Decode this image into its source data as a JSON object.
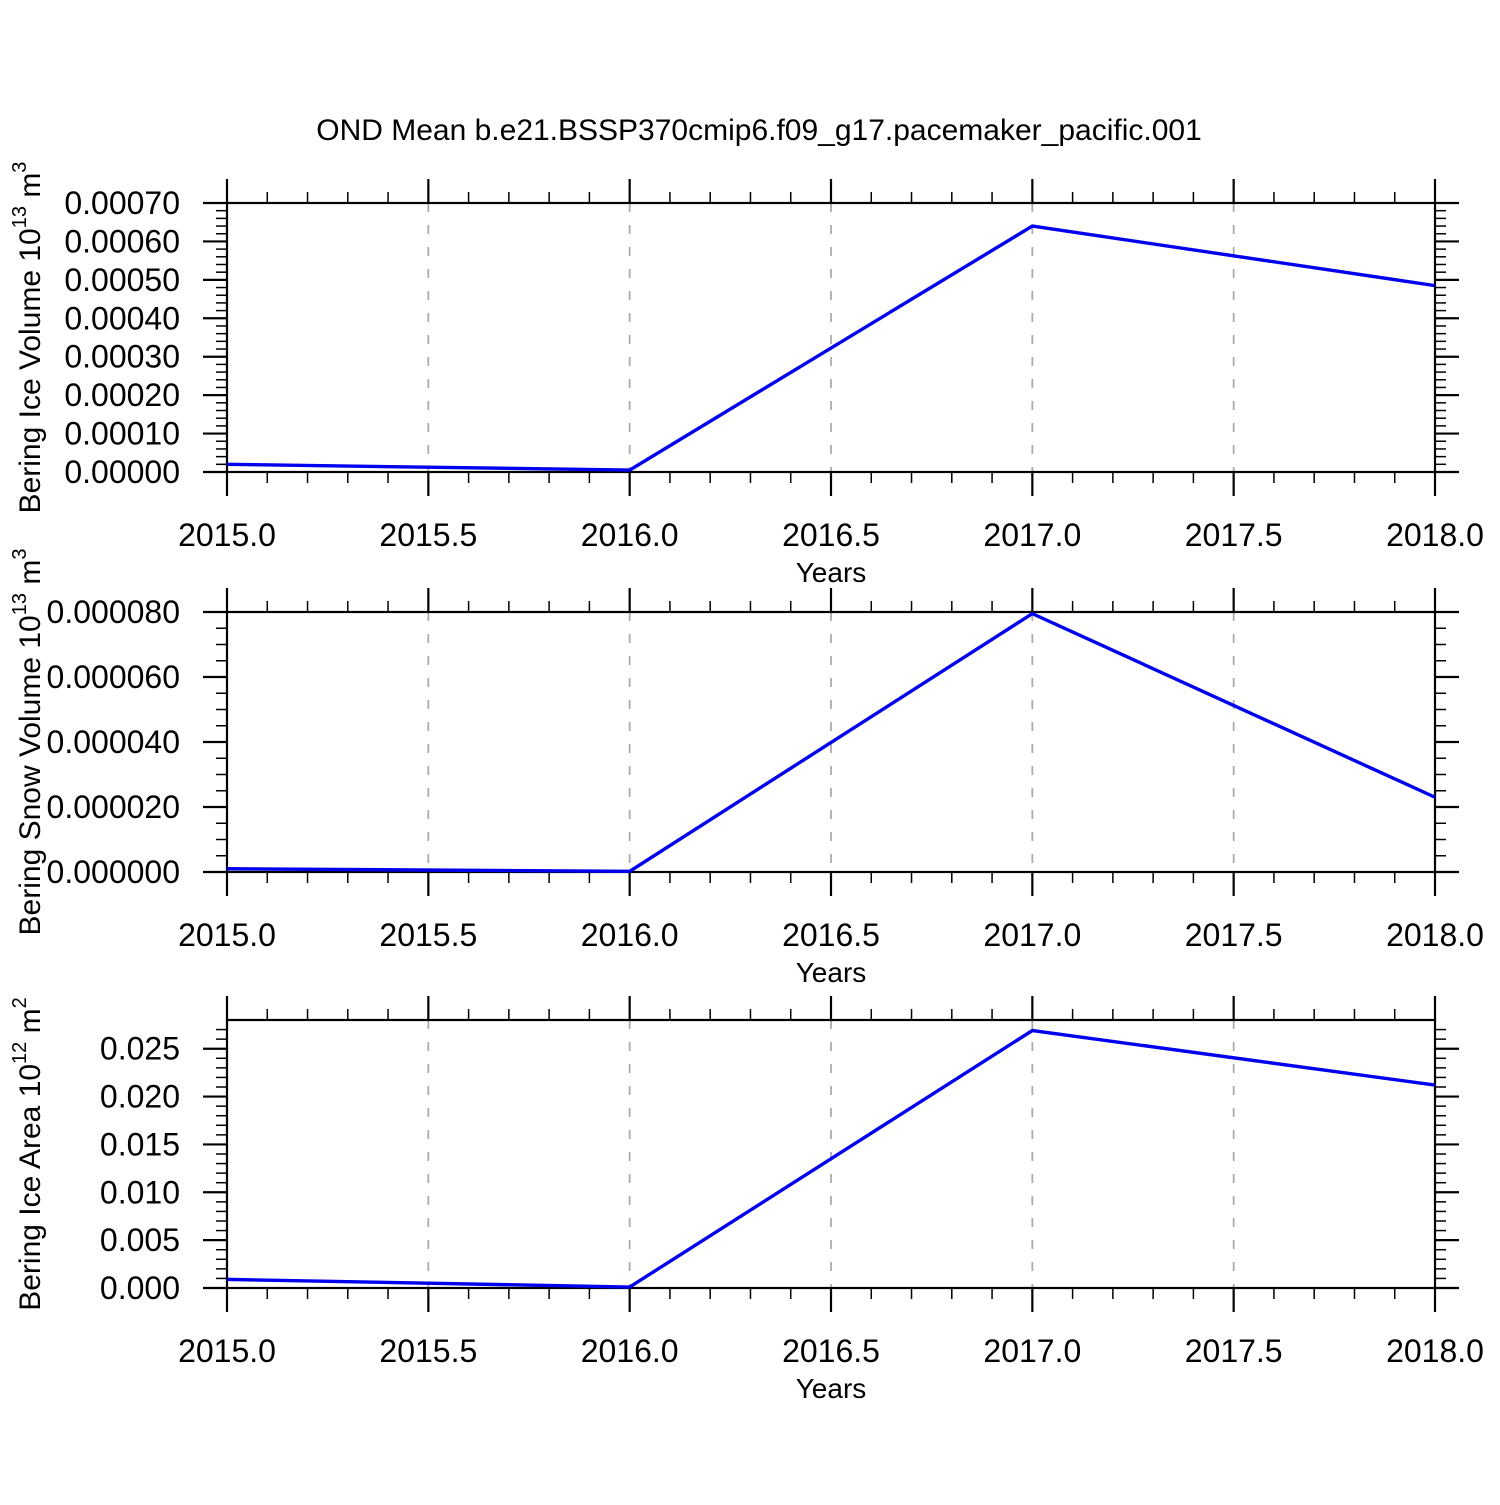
{
  "title": "OND Mean b.e21.BSSP370cmip6.f09_g17.pacemaker_pacific.001",
  "colors": {
    "line": "#0000ee",
    "grid": "#ababab",
    "axis": "#000000"
  },
  "chart_data": [
    {
      "type": "line",
      "panel": "bering-ice-volume",
      "x": [
        2015,
        2016,
        2017,
        2018
      ],
      "values": [
        2e-05,
        5e-06,
        0.00064,
        0.000485
      ],
      "ylabel_segments": [
        {
          "t": "Bering Ice Volume 10"
        },
        {
          "t": "13",
          "sup": true
        },
        {
          "t": " m"
        },
        {
          "t": "3",
          "sup": true
        }
      ],
      "xlabel": "Years",
      "xlim": [
        2015,
        2018
      ],
      "ylim": [
        0,
        0.0007
      ],
      "xticks": {
        "values": [
          2015.0,
          2015.5,
          2016.0,
          2016.5,
          2017.0,
          2017.5,
          2018.0
        ],
        "labels": [
          "2015.0",
          "2015.5",
          "2016.0",
          "2016.5",
          "2017.0",
          "2017.5",
          "2018.0"
        ],
        "minor_step": 0.1
      },
      "yticks": {
        "values": [
          0,
          0.0001,
          0.0002,
          0.0003,
          0.0004,
          0.0005,
          0.0006,
          0.0007
        ],
        "labels": [
          "0.00000",
          "0.00010",
          "0.00020",
          "0.00030",
          "0.00040",
          "0.00050",
          "0.00060",
          "0.00070"
        ],
        "minor_step": 2e-05
      },
      "gridlines_x": [
        2015.5,
        2016.0,
        2016.5,
        2017.0,
        2017.5
      ],
      "grid_on": true,
      "legend": "none"
    },
    {
      "type": "line",
      "panel": "bering-snow-volume",
      "x": [
        2015,
        2016,
        2017,
        2018
      ],
      "values": [
        1e-06,
        2e-07,
        7.95e-05,
        2.3e-05
      ],
      "ylabel_segments": [
        {
          "t": "Bering Snow Volume 10"
        },
        {
          "t": "13",
          "sup": true
        },
        {
          "t": " m"
        },
        {
          "t": "3",
          "sup": true
        }
      ],
      "xlabel": "Years",
      "xlim": [
        2015,
        2018
      ],
      "ylim": [
        0,
        8e-05
      ],
      "xticks": {
        "values": [
          2015.0,
          2015.5,
          2016.0,
          2016.5,
          2017.0,
          2017.5,
          2018.0
        ],
        "labels": [
          "2015.0",
          "2015.5",
          "2016.0",
          "2016.5",
          "2017.0",
          "2017.5",
          "2018.0"
        ],
        "minor_step": 0.1
      },
      "yticks": {
        "values": [
          0,
          2e-05,
          4e-05,
          6e-05,
          8e-05
        ],
        "labels": [
          "0.000000",
          "0.000020",
          "0.000040",
          "0.000060",
          "0.000080"
        ],
        "minor_step": 5e-06
      },
      "gridlines_x": [
        2015.5,
        2016.0,
        2016.5,
        2017.0,
        2017.5
      ],
      "grid_on": true,
      "legend": "none"
    },
    {
      "type": "line",
      "panel": "bering-ice-area",
      "x": [
        2015,
        2016,
        2017,
        2018
      ],
      "values": [
        0.0009,
        0.0001,
        0.0269,
        0.0212
      ],
      "ylabel_segments": [
        {
          "t": "Bering Ice Area 10"
        },
        {
          "t": "12",
          "sup": true
        },
        {
          "t": " m"
        },
        {
          "t": "2",
          "sup": true
        }
      ],
      "xlabel": "Years",
      "xlim": [
        2015,
        2018
      ],
      "ylim": [
        0,
        0.028
      ],
      "xticks": {
        "values": [
          2015.0,
          2015.5,
          2016.0,
          2016.5,
          2017.0,
          2017.5,
          2018.0
        ],
        "labels": [
          "2015.0",
          "2015.5",
          "2016.0",
          "2016.5",
          "2017.0",
          "2017.5",
          "2018.0"
        ],
        "minor_step": 0.1
      },
      "yticks": {
        "values": [
          0,
          0.005,
          0.01,
          0.015,
          0.02,
          0.025
        ],
        "labels": [
          "0.000",
          "0.005",
          "0.010",
          "0.015",
          "0.020",
          "0.025"
        ],
        "minor_step": 0.001
      },
      "gridlines_x": [
        2015.5,
        2016.0,
        2016.5,
        2017.0,
        2017.5
      ],
      "grid_on": true,
      "legend": "none"
    }
  ]
}
